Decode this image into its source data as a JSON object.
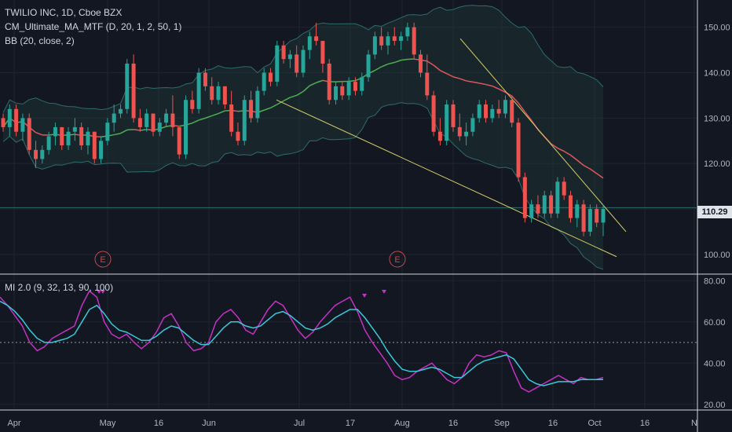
{
  "header": {
    "symbol_line": "TWILIO INC, 1D, Cboe BZX",
    "ma_line": "CM_Ultimate_MA_MTF (D, 20, 1, 2, 50, 1)",
    "bb_line": "BB (20, close, 2)",
    "mi_line": "MI 2.0 (9, 32, 13, 90, 100)"
  },
  "last_price": "110.29",
  "colors": {
    "background": "#131722",
    "up": "#26a69a",
    "down": "#ef5350",
    "ma": "#4caf50",
    "ma_down": "#e0575b",
    "bb_fill": "#1e3a3a",
    "bb_line": "#2e6b6b",
    "trendline": "#d7d06a",
    "mi_fast": "#c432c4",
    "mi_slow": "#3cc8d8",
    "grid": "#1f2430",
    "axis_text": "#b2b5be",
    "earnings": "#c24a4a"
  },
  "chart_data": [
    {
      "type": "candlestick",
      "title": "TWILIO INC, 1D, Cboe BZX",
      "y_range": [
        96,
        156
      ],
      "y_ticks": [
        "100.00",
        "110.00",
        "120.00",
        "130.00",
        "140.00",
        "150.00"
      ],
      "x_ticks": [
        "Apr",
        "May",
        "16",
        "Jun",
        "Jul",
        "17",
        "Aug",
        "16",
        "Sep",
        "16",
        "Oct",
        "16",
        "N"
      ],
      "last_price": 110.29,
      "earnings_markers": [
        "E",
        "E"
      ],
      "candles": [
        [
          130,
          131,
          127,
          128
        ],
        [
          128,
          133,
          126,
          132
        ],
        [
          132,
          133,
          126,
          127
        ],
        [
          127,
          131,
          125,
          130
        ],
        [
          130,
          131,
          122,
          123
        ],
        [
          123,
          125,
          119,
          121
        ],
        [
          121,
          124,
          120,
          123
        ],
        [
          123,
          127,
          122,
          126
        ],
        [
          126,
          129,
          124,
          128
        ],
        [
          128,
          128,
          123,
          124
        ],
        [
          124,
          128,
          123,
          127
        ],
        [
          127,
          130,
          125,
          128
        ],
        [
          128,
          129,
          123,
          124
        ],
        [
          124,
          128,
          122,
          127
        ],
        [
          127,
          127,
          120,
          121
        ],
        [
          121,
          126,
          120,
          125
        ],
        [
          125,
          130,
          124,
          129
        ],
        [
          129,
          133,
          127,
          131
        ],
        [
          131,
          133,
          130,
          132
        ],
        [
          132,
          143,
          131,
          142
        ],
        [
          142,
          144,
          129,
          130
        ],
        [
          130,
          132,
          127,
          128
        ],
        [
          128,
          132,
          127,
          131
        ],
        [
          131,
          131,
          126,
          127
        ],
        [
          127,
          130,
          126,
          129
        ],
        [
          129,
          132,
          128,
          131
        ],
        [
          131,
          135,
          126,
          128
        ],
        [
          128,
          128,
          121,
          122
        ],
        [
          122,
          135,
          121,
          134
        ],
        [
          134,
          136,
          131,
          132
        ],
        [
          132,
          141,
          131,
          140
        ],
        [
          140,
          141,
          136,
          137
        ],
        [
          137,
          139,
          133,
          134
        ],
        [
          134,
          138,
          133,
          137
        ],
        [
          137,
          137,
          132,
          133
        ],
        [
          133,
          136,
          126,
          127
        ],
        [
          127,
          129,
          124,
          125
        ],
        [
          125,
          135,
          124,
          134
        ],
        [
          134,
          136,
          129,
          130
        ],
        [
          130,
          137,
          129,
          136
        ],
        [
          136,
          141,
          135,
          140
        ],
        [
          140,
          141,
          137,
          138
        ],
        [
          138,
          147,
          137,
          146
        ],
        [
          146,
          147,
          142,
          143
        ],
        [
          143,
          145,
          141,
          144
        ],
        [
          144,
          146,
          139,
          140
        ],
        [
          140,
          146,
          139,
          145
        ],
        [
          145,
          149,
          143,
          148
        ],
        [
          148,
          151,
          146,
          147
        ],
        [
          147,
          147,
          140,
          142
        ],
        [
          142,
          143,
          133,
          134
        ],
        [
          134,
          138,
          133,
          137
        ],
        [
          137,
          138,
          134,
          135
        ],
        [
          135,
          139,
          134,
          138
        ],
        [
          138,
          139,
          135,
          136
        ],
        [
          136,
          140,
          135,
          139
        ],
        [
          139,
          145,
          138,
          144
        ],
        [
          144,
          149,
          143,
          148
        ],
        [
          148,
          150,
          145,
          146
        ],
        [
          146,
          149,
          144,
          148
        ],
        [
          148,
          150,
          146,
          147
        ],
        [
          147,
          149,
          145,
          148
        ],
        [
          148,
          151,
          147,
          150
        ],
        [
          150,
          151,
          143,
          144
        ],
        [
          144,
          145,
          139,
          140
        ],
        [
          140,
          144,
          134,
          135
        ],
        [
          135,
          136,
          126,
          127
        ],
        [
          127,
          130,
          124,
          125
        ],
        [
          125,
          134,
          124,
          133
        ],
        [
          133,
          134,
          127,
          128
        ],
        [
          128,
          131,
          125,
          126
        ],
        [
          126,
          129,
          124,
          127
        ],
        [
          127,
          131,
          126,
          130
        ],
        [
          130,
          134,
          129,
          133
        ],
        [
          133,
          134,
          129,
          130
        ],
        [
          130,
          133,
          129,
          132
        ],
        [
          132,
          134,
          130,
          131
        ],
        [
          131,
          135,
          130,
          134
        ],
        [
          134,
          135,
          128,
          129
        ],
        [
          129,
          130,
          116,
          117
        ],
        [
          117,
          118,
          107,
          108
        ],
        [
          108,
          112,
          107,
          111
        ],
        [
          111,
          113,
          108,
          109
        ],
        [
          109,
          114,
          108,
          113
        ],
        [
          113,
          114,
          108,
          109
        ],
        [
          109,
          117,
          108,
          116
        ],
        [
          116,
          117,
          112,
          113
        ],
        [
          113,
          114,
          107,
          108
        ],
        [
          108,
          112,
          106,
          111
        ],
        [
          111,
          112,
          104,
          105
        ],
        [
          105,
          111,
          104,
          110
        ],
        [
          110,
          111,
          106,
          107
        ],
        [
          107,
          111,
          104,
          110
        ]
      ]
    },
    {
      "type": "line",
      "title": "MI 2.0 (9, 32, 13, 90, 100)",
      "y_range": [
        18,
        82
      ],
      "y_ticks": [
        "20.00",
        "40.00",
        "60.00",
        "80.00"
      ],
      "reference_level": 50,
      "series": [
        {
          "values": [
            72,
            68,
            63,
            58,
            50,
            46,
            48,
            52,
            54,
            56,
            58,
            68,
            75,
            72,
            60,
            54,
            52,
            54,
            50,
            47,
            50,
            55,
            62,
            64,
            58,
            50,
            46,
            47,
            50,
            60,
            64,
            66,
            62,
            56,
            54,
            60,
            66,
            70,
            68,
            62,
            56,
            52,
            55,
            60,
            64,
            68,
            70,
            72,
            65,
            56,
            50,
            45,
            40,
            34,
            32,
            33,
            36,
            38,
            40,
            36,
            32,
            30,
            33,
            40,
            44,
            43,
            44,
            46,
            45,
            36,
            28,
            26,
            28,
            30,
            32,
            34,
            32,
            30,
            33,
            32,
            32,
            33
          ]
        },
        {
          "values": [
            70,
            68,
            65,
            61,
            56,
            52,
            50,
            50,
            51,
            52,
            54,
            60,
            66,
            68,
            64,
            59,
            56,
            55,
            53,
            51,
            51,
            53,
            56,
            58,
            57,
            54,
            51,
            49,
            49,
            53,
            57,
            60,
            60,
            58,
            57,
            58,
            61,
            64,
            65,
            63,
            60,
            57,
            56,
            57,
            59,
            62,
            64,
            66,
            66,
            62,
            57,
            52,
            46,
            41,
            37,
            36,
            36,
            37,
            38,
            37,
            35,
            33,
            33,
            36,
            39,
            41,
            42,
            43,
            44,
            42,
            37,
            32,
            30,
            29,
            30,
            31,
            31,
            31,
            32,
            32,
            32,
            32
          ]
        }
      ]
    }
  ]
}
